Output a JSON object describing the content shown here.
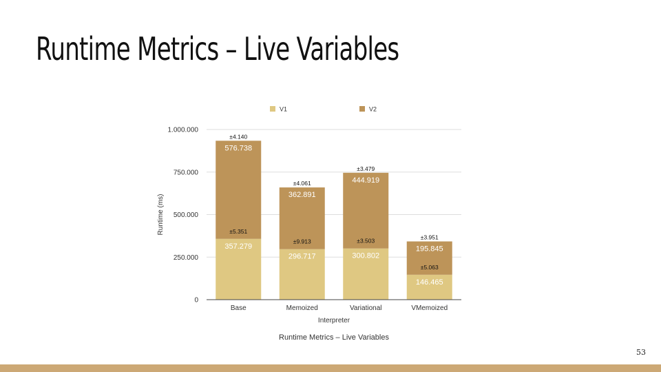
{
  "slide": {
    "title": "Runtime Metrics – Live Variables",
    "page_number": "53"
  },
  "colors": {
    "v1": "#dfc882",
    "v2": "#bd9459",
    "footer_bar": "#cca875",
    "axis_text": "#333333",
    "grid": "#dddddd"
  },
  "chart_data": {
    "type": "bar",
    "stacked": true,
    "title": "Runtime Metrics – Live Variables",
    "xlabel": "Interpreter",
    "ylabel": "Runtime (ms)",
    "ylim": [
      0,
      1000000
    ],
    "yticks": [
      0,
      250000,
      500000,
      750000,
      1000000
    ],
    "ytick_labels": [
      "0",
      "250.000",
      "500.000",
      "750.000",
      "1.000.000"
    ],
    "categories": [
      "Base",
      "Memoized",
      "Variational",
      "VMemoized"
    ],
    "legend_position": "top",
    "grid": true,
    "series": [
      {
        "name": "V1",
        "values": [
          357279,
          296717,
          300802,
          146465
        ],
        "labels": [
          "357.279",
          "296.717",
          "300.802",
          "146.465"
        ],
        "errors": [
          "±5.351",
          "±9.913",
          "±3.503",
          "±5.063"
        ]
      },
      {
        "name": "V2",
        "values": [
          576738,
          362891,
          444919,
          195845
        ],
        "labels": [
          "576.738",
          "362.891",
          "444.919",
          "195.845"
        ],
        "errors": [
          "±4.140",
          "±4.061",
          "±3.479",
          "±3.951"
        ]
      }
    ]
  }
}
